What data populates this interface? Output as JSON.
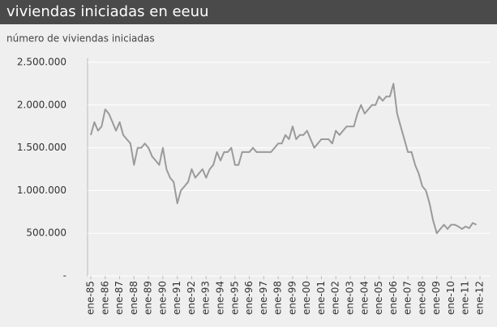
{
  "chart_data": {
    "type": "line",
    "title": "viviendas iniciadas en eeuu",
    "y_label": "número de viviendas iniciadas",
    "categories": [
      "ene-85",
      null,
      null,
      null,
      "ene-86",
      null,
      null,
      null,
      "ene-87",
      null,
      null,
      null,
      "ene-88",
      null,
      null,
      null,
      "ene-89",
      null,
      null,
      null,
      "ene-90",
      null,
      null,
      null,
      "ene-91",
      null,
      null,
      null,
      "ene-92",
      null,
      null,
      null,
      "ene-93",
      null,
      null,
      null,
      "ene-94",
      null,
      null,
      null,
      "ene-95",
      null,
      null,
      null,
      "ene-96",
      null,
      null,
      null,
      "ene-97",
      null,
      null,
      null,
      "ene-98",
      null,
      null,
      null,
      "ene-99",
      null,
      null,
      null,
      "ene-00",
      null,
      null,
      null,
      "ene-01",
      null,
      null,
      null,
      "ene-02",
      null,
      null,
      null,
      "ene-03",
      null,
      null,
      null,
      "ene-04",
      null,
      null,
      null,
      "ene-05",
      null,
      null,
      null,
      "ene-06",
      null,
      null,
      null,
      "ene-07",
      null,
      null,
      null,
      "ene-08",
      null,
      null,
      null,
      "ene-09",
      null,
      null,
      null,
      "ene-10",
      null,
      null,
      null,
      "ene-11",
      null,
      null,
      null,
      "ene-12"
    ],
    "values": [
      1650000,
      1800000,
      1700000,
      1750000,
      1950000,
      1900000,
      1800000,
      1700000,
      1800000,
      1650000,
      1600000,
      1550000,
      1300000,
      1500000,
      1500000,
      1550000,
      1500000,
      1400000,
      1350000,
      1300000,
      1500000,
      1250000,
      1150000,
      1100000,
      850000,
      1000000,
      1050000,
      1100000,
      1250000,
      1150000,
      1200000,
      1250000,
      1150000,
      1250000,
      1300000,
      1450000,
      1350000,
      1450000,
      1450000,
      1500000,
      1300000,
      1300000,
      1450000,
      1450000,
      1450000,
      1500000,
      1450000,
      1450000,
      1450000,
      1450000,
      1450000,
      1500000,
      1550000,
      1550000,
      1650000,
      1600000,
      1750000,
      1600000,
      1650000,
      1650000,
      1700000,
      1600000,
      1500000,
      1550000,
      1600000,
      1600000,
      1600000,
      1550000,
      1700000,
      1650000,
      1700000,
      1750000,
      1750000,
      1750000,
      1900000,
      2000000,
      1900000,
      1950000,
      2000000,
      2000000,
      2100000,
      2050000,
      2100000,
      2100000,
      2250000,
      1900000,
      1750000,
      1600000,
      1450000,
      1450000,
      1300000,
      1200000,
      1050000,
      1000000,
      850000,
      650000,
      500000,
      550000,
      600000,
      550000,
      600000,
      600000,
      580000,
      550000,
      580000,
      560000,
      620000,
      600000,
      null
    ],
    "color": "#9a9a9a",
    "ylim": [
      0,
      2500000
    ],
    "yticks": [
      {
        "value": 0,
        "label": "-"
      },
      {
        "value": 500000,
        "label": "500.000"
      },
      {
        "value": 1000000,
        "label": "1.000.000"
      },
      {
        "value": 1500000,
        "label": "1.500.000"
      },
      {
        "value": 2000000,
        "label": "2.000.000"
      },
      {
        "value": 2500000,
        "label": "2.500.000"
      }
    ],
    "grid": true
  }
}
